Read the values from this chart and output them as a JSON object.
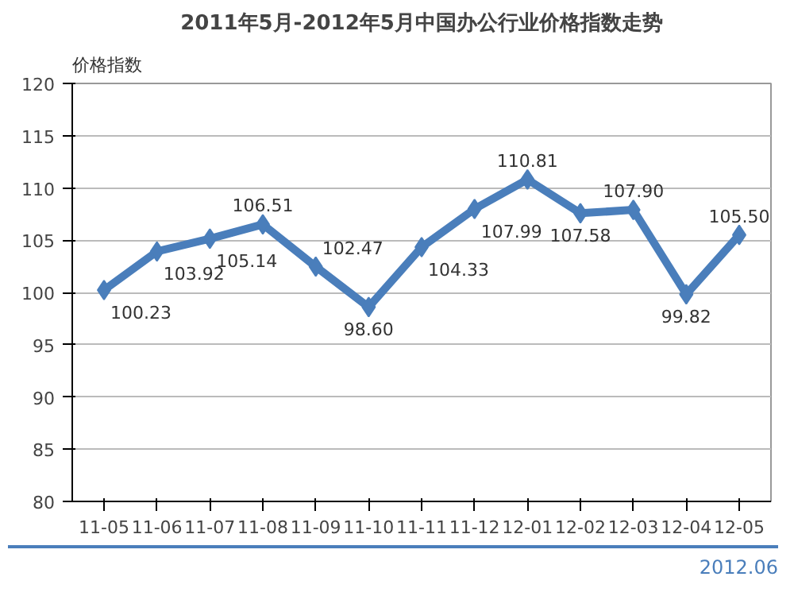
{
  "chart_data": {
    "type": "line",
    "title": "2011年5月-2012年5月中国办公行业价格指数走势",
    "ylabel": "价格指数",
    "categories": [
      "11-05",
      "11-06",
      "11-07",
      "11-08",
      "11-09",
      "11-10",
      "11-11",
      "11-12",
      "12-01",
      "12-02",
      "12-03",
      "12-04",
      "12-05"
    ],
    "series": [
      {
        "color": "#4a7ebb",
        "values": [
          100.23,
          103.92,
          105.14,
          106.51,
          102.47,
          98.6,
          104.33,
          107.99,
          110.81,
          107.58,
          107.9,
          99.82,
          105.5
        ],
        "value_labels": [
          "100.23",
          "103.92",
          "105.14",
          "106.51",
          "102.47",
          "98.60",
          "104.33",
          "107.99",
          "110.81",
          "107.58",
          "107.90",
          "99.82",
          "105.50"
        ]
      }
    ],
    "ylim": [
      80,
      120
    ],
    "yticks": [
      80,
      85,
      90,
      95,
      100,
      105,
      110,
      115,
      120
    ],
    "grid": "y",
    "marker": "diamond",
    "line_style": "solid",
    "annotations": [
      "2012.06"
    ]
  }
}
